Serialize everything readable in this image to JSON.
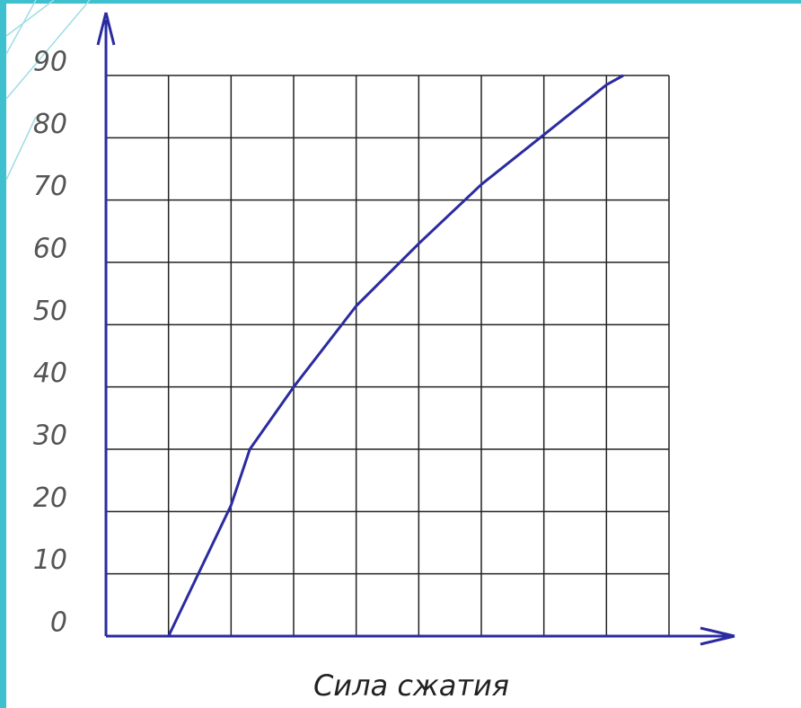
{
  "chart_data": {
    "type": "line",
    "xlabel": "Сила сжатия",
    "x": [
      1,
      2,
      2.3,
      3,
      4,
      5,
      6,
      7,
      8,
      8.27
    ],
    "values": [
      0,
      21,
      30,
      40,
      53,
      63,
      72.5,
      80.5,
      88.5,
      90
    ],
    "color": "#2b2ba0",
    "xlim": [
      0,
      9
    ],
    "xticks": [
      0,
      1,
      2,
      3,
      4,
      5,
      6,
      7,
      8,
      9
    ],
    "ylim": [
      0,
      90
    ],
    "yticks": [
      0,
      10,
      20,
      30,
      40,
      50,
      60,
      70,
      80,
      90
    ],
    "grid": true
  }
}
